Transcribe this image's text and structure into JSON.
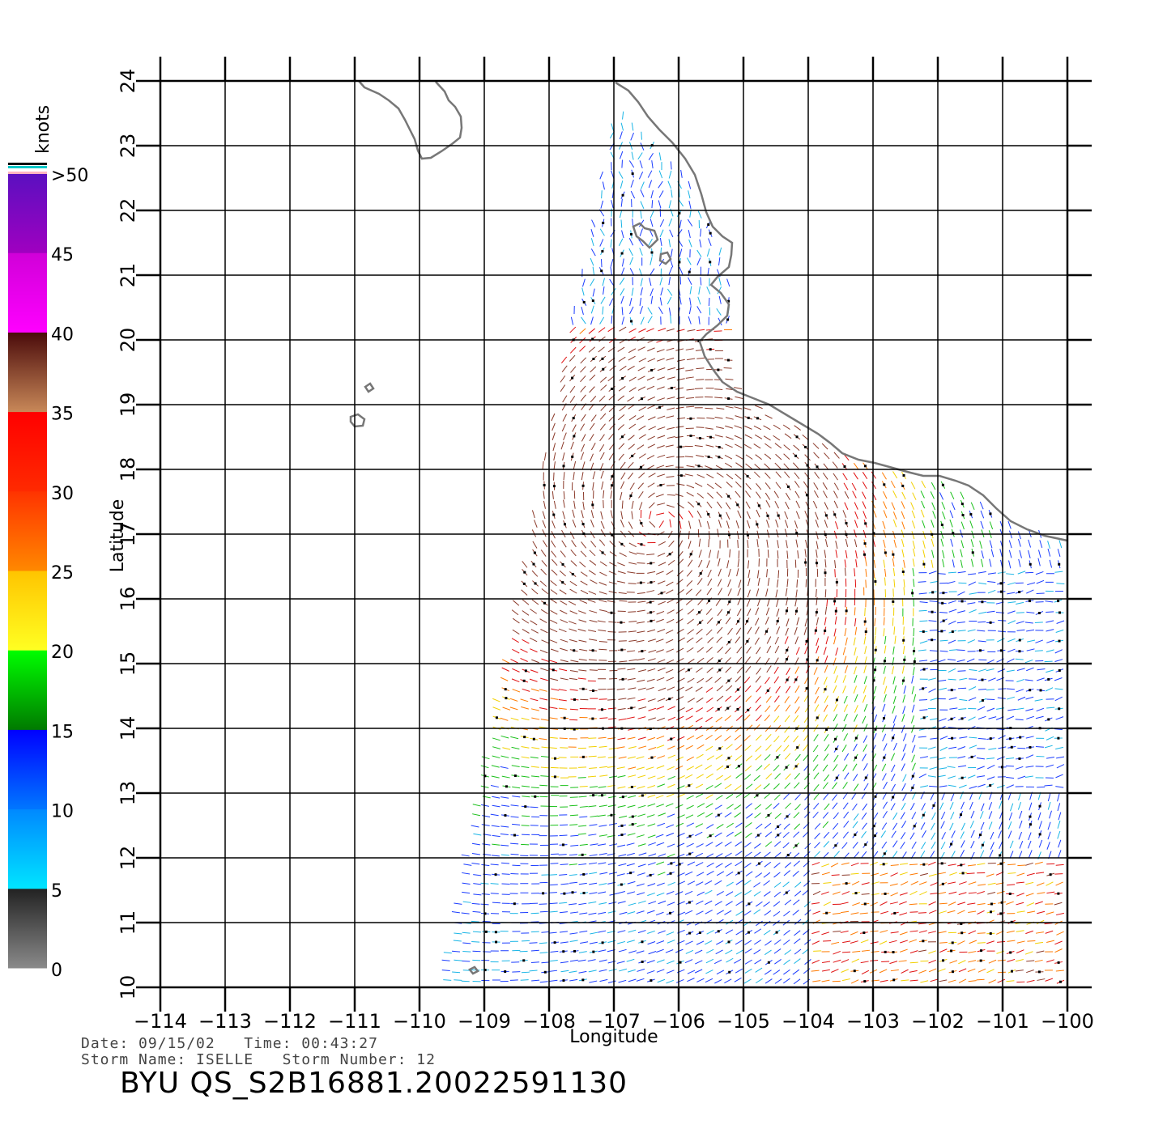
{
  "map": {
    "type": "wind-vector-map",
    "region": {
      "lon_range": [
        -114,
        -100
      ],
      "lat_range": [
        10,
        24
      ]
    },
    "grid": true,
    "lon_ticks": [
      -114,
      -113,
      -112,
      -111,
      -110,
      -109,
      -108,
      -107,
      -106,
      -105,
      -104,
      -103,
      -102,
      -101,
      -100
    ],
    "lat_ticks": [
      10,
      11,
      12,
      13,
      14,
      15,
      16,
      17,
      18,
      19,
      20,
      21,
      22,
      23,
      24
    ],
    "xlabel": "Longitude",
    "ylabel": "Latitude",
    "swath": {
      "corners_lonlat": [
        [
          -107,
          23.6
        ],
        [
          -100,
          17
        ],
        [
          -100,
          10
        ],
        [
          -109.7,
          10
        ]
      ]
    }
  },
  "colorbar": {
    "unit_label": "knots",
    "labels": [
      "0",
      "5",
      "10",
      "15",
      "20",
      "25",
      "30",
      "35",
      "40",
      "45",
      ">50"
    ],
    "bands": [
      {
        "from": 0,
        "to": 5,
        "colors": [
          "#8a8a8a",
          "#222222"
        ]
      },
      {
        "from": 5,
        "to": 10,
        "colors": [
          "#00e5ff",
          "#0088ff"
        ]
      },
      {
        "from": 10,
        "to": 15,
        "colors": [
          "#0077ff",
          "#0000ff"
        ]
      },
      {
        "from": 15,
        "to": 20,
        "colors": [
          "#007a00",
          "#00ff00"
        ]
      },
      {
        "from": 20,
        "to": 25,
        "colors": [
          "#ffff22",
          "#ffc400"
        ]
      },
      {
        "from": 25,
        "to": 30,
        "colors": [
          "#ff8800",
          "#ff3300"
        ]
      },
      {
        "from": 30,
        "to": 35,
        "colors": [
          "#ff2a00",
          "#ff0000"
        ]
      },
      {
        "from": 35,
        "to": 40,
        "colors": [
          "#c88858",
          "#4a0a0a"
        ]
      },
      {
        "from": 40,
        "to": 45,
        "colors": [
          "#ff00ff",
          "#d000d8"
        ]
      },
      {
        "from": 45,
        "to": 50,
        "colors": [
          "#a000c0",
          "#5a10c0"
        ]
      }
    ]
  },
  "footer": {
    "date_line": "Date: 09/15/02   Time: 00:43:27",
    "storm_line": "Storm Name: ISELLE   Storm Number: 12",
    "product": "BYU QS_S2B16881.20022591130"
  }
}
